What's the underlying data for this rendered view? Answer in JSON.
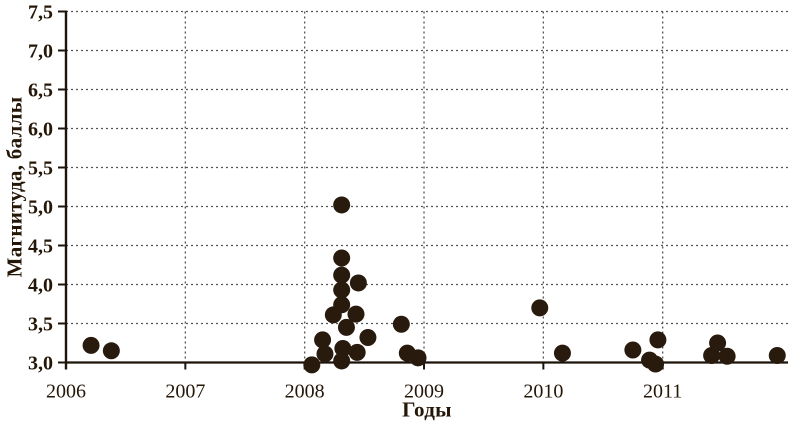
{
  "chart_data": {
    "type": "scatter",
    "title": "",
    "xlabel": "Годы",
    "ylabel": "Магнитуда, баллы",
    "xlim": [
      2006,
      2012.05
    ],
    "ylim": [
      3.0,
      7.5
    ],
    "grid": "dotted; horizontal every 0.5 magnitude, vertical at each year",
    "legend": "none",
    "xticks": [
      {
        "value": 2006,
        "label": "2006"
      },
      {
        "value": 2007,
        "label": "2007"
      },
      {
        "value": 2008,
        "label": "2008"
      },
      {
        "value": 2009,
        "label": "2009"
      },
      {
        "value": 2010,
        "label": "2010"
      },
      {
        "value": 2011,
        "label": "2011"
      }
    ],
    "yticks": [
      {
        "value": 3.0,
        "label": "3,0"
      },
      {
        "value": 3.5,
        "label": "3,5"
      },
      {
        "value": 4.0,
        "label": "4,0"
      },
      {
        "value": 4.5,
        "label": "4,5"
      },
      {
        "value": 5.0,
        "label": "5,0"
      },
      {
        "value": 5.5,
        "label": "5,5"
      },
      {
        "value": 6.0,
        "label": "6,0"
      },
      {
        "value": 6.5,
        "label": "6,5"
      },
      {
        "value": 7.0,
        "label": "7,0"
      },
      {
        "value": 7.5,
        "label": "7,5"
      }
    ],
    "points": [
      [
        2006.21,
        3.22
      ],
      [
        2006.38,
        3.15
      ],
      [
        2008.06,
        2.97
      ],
      [
        2008.15,
        3.29
      ],
      [
        2008.17,
        3.11
      ],
      [
        2008.24,
        3.61
      ],
      [
        2008.31,
        5.02
      ],
      [
        2008.31,
        4.34
      ],
      [
        2008.31,
        4.12
      ],
      [
        2008.31,
        3.93
      ],
      [
        2008.31,
        3.74
      ],
      [
        2008.31,
        3.02
      ],
      [
        2008.32,
        3.18
      ],
      [
        2008.35,
        3.45
      ],
      [
        2008.43,
        3.62
      ],
      [
        2008.45,
        4.02
      ],
      [
        2008.44,
        3.13
      ],
      [
        2008.53,
        3.32
      ],
      [
        2008.81,
        3.49
      ],
      [
        2008.86,
        3.12
      ],
      [
        2008.95,
        3.06
      ],
      [
        2009.97,
        3.7
      ],
      [
        2010.16,
        3.12
      ],
      [
        2010.75,
        3.16
      ],
      [
        2010.89,
        3.03
      ],
      [
        2010.94,
        2.98
      ],
      [
        2010.96,
        3.29
      ],
      [
        2011.41,
        3.09
      ],
      [
        2011.46,
        3.25
      ],
      [
        2011.54,
        3.08
      ],
      [
        2011.96,
        3.09
      ]
    ],
    "marker": {
      "shape": "circle",
      "radius_px": 8.5,
      "color": "#281a0d"
    },
    "colors": {
      "axis": "#1c130a",
      "grid": "#545454",
      "text": "#241708",
      "background": "#ffffff"
    }
  }
}
